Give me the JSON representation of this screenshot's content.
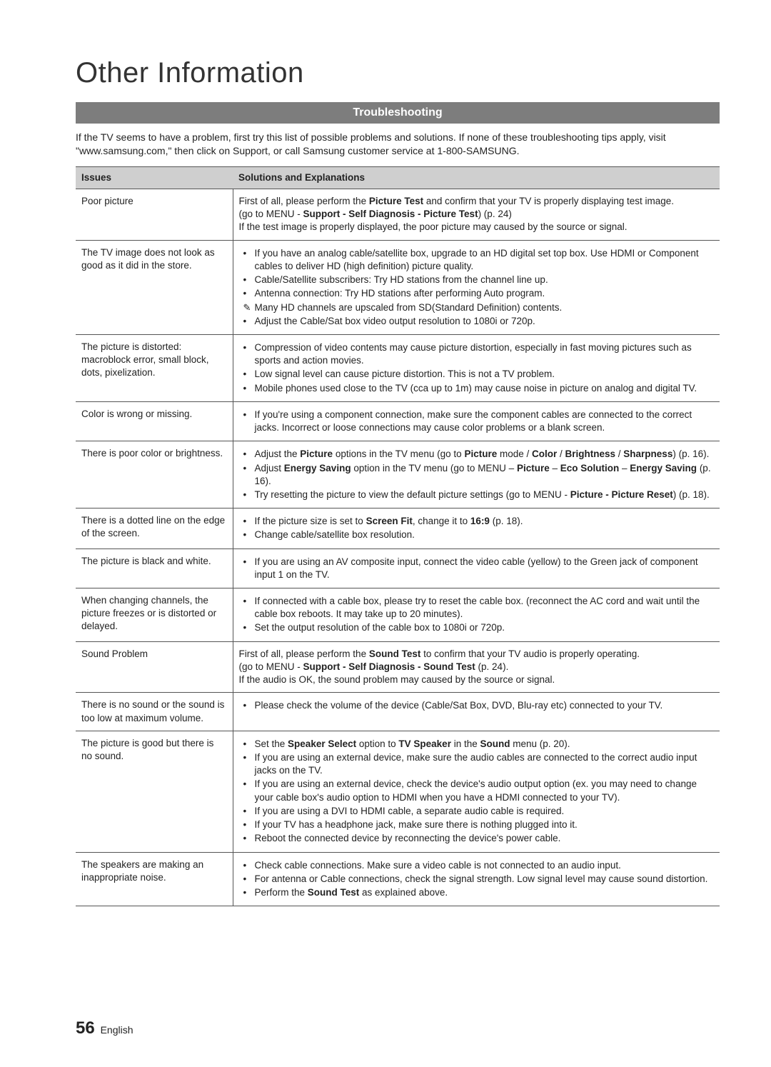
{
  "page": {
    "title": "Other Information",
    "section_bar": "Troubleshooting",
    "intro": "If the TV seems to have a problem, first try this list of possible problems and solutions. If none of these troubleshooting tips apply, visit \"www.samsung.com,\" then click on Support, or call Samsung customer service at 1-800-SAMSUNG.",
    "page_number": "56",
    "language": "English"
  },
  "table": {
    "headers": {
      "col1": "Issues",
      "col2": "Solutions and Explanations"
    },
    "rows": [
      {
        "issue": "Poor picture",
        "html": "First of all, please perform the <span class=\"b\">Picture Test</span> and confirm that your TV is properly displaying test image.<br>(go to MENU - <span class=\"b\">Support - Self Diagnosis - Picture Test</span>) (p. 24)<br>If the test image is properly displayed, the poor picture may caused by the source or signal."
      },
      {
        "issue": "The TV image does not look as good as it did in the store.",
        "html": "<ul><li>If you have an analog cable/satellite box, upgrade to an HD digital set top box. Use HDMI or Component cables to deliver HD (high definition) picture quality.</li><li>Cable/Satellite subscribers: Try HD stations from the channel line up.</li><li>Antenna connection: Try HD stations after performing Auto program.</li><li class=\"note\">Many HD channels are upscaled from SD(Standard Definition) contents.</li><li>Adjust the Cable/Sat box video output resolution to 1080i or 720p.</li></ul>"
      },
      {
        "issue": "The picture is distorted: macroblock error, small block, dots, pixelization.",
        "html": "<ul><li>Compression of video contents may cause picture distortion, especially in fast moving pictures such as sports and action movies.</li><li>Low signal level can cause picture distortion. This is not a TV problem.</li><li>Mobile phones used close to the TV (cca up to 1m) may cause noise in picture on analog and digital TV.</li></ul>"
      },
      {
        "issue": "Color is wrong or missing.",
        "html": "<ul><li>If you're using a component connection, make sure the component cables are connected to the correct jacks. Incorrect or loose connections may cause color problems or a blank screen.</li></ul>"
      },
      {
        "issue": "There is poor color or brightness.",
        "html": "<ul><li>Adjust the <span class=\"b\">Picture</span> options in the TV menu (go to <span class=\"b\">Picture</span> mode / <span class=\"b\">Color</span> / <span class=\"b\">Brightness</span> / <span class=\"b\">Sharpness</span>) (p. 16).</li><li>Adjust <span class=\"b\">Energy Saving</span> option in the TV menu (go to MENU – <span class=\"b\">Picture</span> – <span class=\"b\">Eco Solution</span> – <span class=\"b\">Energy Saving</span> (p. 16).</li><li>Try resetting the picture to view the default picture settings (go to MENU - <span class=\"b\">Picture - Picture Reset</span>) (p. 18).</li></ul>"
      },
      {
        "issue": "There is a dotted line on the edge of the screen.",
        "html": "<ul><li>If the picture size is set to <span class=\"b\">Screen Fit</span>, change it to <span class=\"b\">16:9</span> (p. 18).</li><li>Change cable/satellite box resolution.</li></ul>"
      },
      {
        "issue": "The picture is black and white.",
        "html": "<ul><li>If you are using an AV composite input, connect the video cable (yellow) to the Green jack of component input 1 on the TV.</li></ul>"
      },
      {
        "issue": "When changing channels, the picture freezes or is distorted or delayed.",
        "html": "<ul><li>If connected with a cable box, please try to reset the cable box. (reconnect the AC cord and wait until the cable box reboots. It may take up to 20 minutes).</li><li>Set the output resolution of the cable box to 1080i or 720p.</li></ul>"
      },
      {
        "issue": "Sound Problem",
        "html": "First of all, please perform the <span class=\"b\">Sound Test</span> to confirm that your TV audio is properly operating.<br>(go to MENU - <span class=\"b\">Support - Self Diagnosis - Sound Test</span> (p. 24).<br>If the audio is OK, the sound problem may caused by the source or signal."
      },
      {
        "issue": "There is no sound or the sound is too low at maximum volume.",
        "html": "<ul><li>Please check the volume of the device (Cable/Sat Box, DVD, Blu-ray etc) connected to your TV.</li></ul>"
      },
      {
        "issue": "The picture is good but there is no sound.",
        "html": "<ul><li>Set the <span class=\"b\">Speaker Select</span> option to <span class=\"b\">TV Speaker</span> in the <span class=\"b\">Sound</span> menu (p. 20).</li><li>If you are using an external device, make sure the audio cables are connected to the correct audio input jacks on the TV.</li><li>If you are using an external device, check the device's audio output option (ex. you may need to change your cable box's audio option to HDMI when you have a HDMI connected to your TV).</li><li>If you are using a DVI to HDMI cable, a separate audio cable is required.</li><li>If your TV has a headphone jack, make sure there is nothing plugged into it.</li><li>Reboot the connected device by reconnecting the device's power cable.</li></ul>"
      },
      {
        "issue": "The speakers are making an inappropriate noise.",
        "html": "<ul><li>Check cable connections. Make sure a video cable is not connected to an audio input.</li><li>For antenna or Cable connections, check the signal strength. Low signal level may cause sound distortion.</li><li>Perform the <span class=\"b\">Sound Test</span> as explained above.</li></ul>"
      }
    ]
  }
}
